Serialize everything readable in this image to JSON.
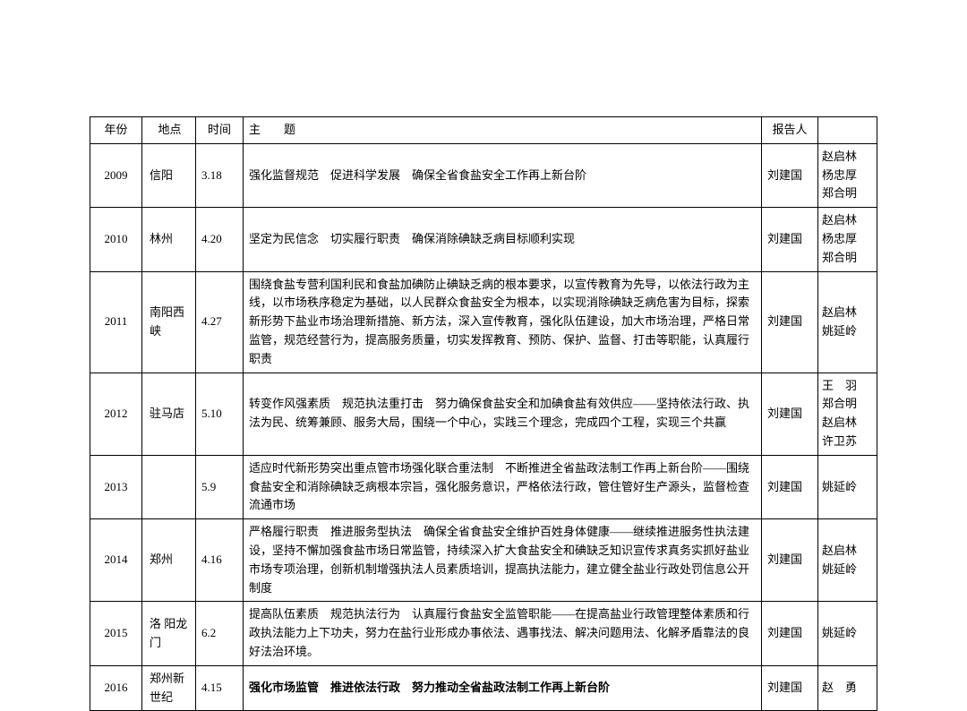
{
  "headers": {
    "year": "年份",
    "place": "地点",
    "time": "时间",
    "topic_spaced": "主　　题",
    "reporter": "报告人"
  },
  "rows": [
    {
      "year": "2009",
      "place": "信阳",
      "time": "3.18",
      "topic": "强化监督规范　促进科学发展　确保全省食盐安全工作再上新台阶",
      "reporter": "刘建国",
      "extra": "赵启林\n杨忠厚\n郑合明"
    },
    {
      "year": "2010",
      "place": "林州",
      "time": "4.20",
      "topic": "坚定为民信念　切实履行职责　确保消除碘缺乏病目标顺利实现",
      "reporter": "刘建国",
      "extra": "赵启林\n杨忠厚\n郑合明"
    },
    {
      "year": "2011",
      "place": "南阳西峡",
      "time": "4.27",
      "topic": "围绕食盐专营利国利民和食盐加碘防止碘缺乏病的根本要求，以宣传教育为先导，以依法行政为主线，以市场秩序稳定为基础，以人民群众食盐安全为根本，以实现消除碘缺乏病危害为目标，探索新形势下盐业市场治理新措施、新方法，深入宣传教育，强化队伍建设，加大市场治理，严格日常监管，规范经营行为，提高服务质量，切实发挥教育、预防、保护、监督、打击等职能，认真履行职责",
      "reporter": "刘建国",
      "extra": "赵启林\n姚延岭"
    },
    {
      "year": "2012",
      "place": "驻马店",
      "time": "5.10",
      "topic": "转变作风强素质　规范执法重打击　努力确保食盐安全和加碘食盐有效供应——坚持依法行政、执法为民、统筹兼顾、服务大局，围绕一个中心，实践三个理念，完成四个工程，实现三个共赢",
      "reporter": "刘建国",
      "extra": "王　羽\n郑合明\n赵启林\n许卫苏"
    },
    {
      "year": "2013",
      "place": "",
      "time": "5.9",
      "topic": "适应时代新形势突出重点管市场强化联合重法制　不断推进全省盐政法制工作再上新台阶——围绕食盐安全和消除碘缺乏病根本宗旨，强化服务意识，严格依法行政，管住管好生产源头，监督检查流通市场",
      "reporter": "刘建国",
      "extra": "姚延岭"
    },
    {
      "year": "2014",
      "place": "郑州",
      "time": "4.16",
      "topic": "严格履行职责　推进服务型执法　确保全省食盐安全维护百姓身体健康——继续推进服务性执法建设，坚持不懈加强食盐市场日常监管，持续深入扩大食盐安全和碘缺乏知识宣传求真务实抓好盐业市场专项治理，创新机制增强执法人员素质培训，提高执法能力，建立健全盐业行政处罚信息公开制度",
      "reporter": "刘建国",
      "extra": "赵启林\n姚延岭"
    },
    {
      "year": "2015",
      "place": "洛 阳龙门",
      "time": "6.2",
      "topic": "提高队伍素质　规范执法行为　认真履行食盐安全监管职能——在提高盐业行政管理整体素质和行政执法能力上下功夫，努力在盐行业形成办事依法、遇事找法、解决问题用法、化解矛盾靠法的良好法治环境。",
      "reporter": "刘建国",
      "extra": "姚延岭"
    },
    {
      "year": "2016",
      "place": "郑州新世纪",
      "time": "4.15",
      "topic": "强化市场监管　推进依法行政　努力推动全省盐政法制工作再上新台阶",
      "topic_bold": true,
      "reporter": "刘建国",
      "extra": "赵　勇"
    }
  ]
}
